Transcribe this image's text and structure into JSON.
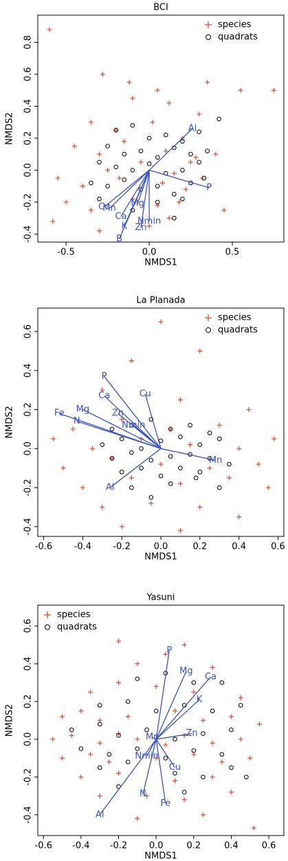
{
  "chart_data": [
    {
      "type": "scatter",
      "title": "BCI",
      "xlabel": "NMDS1",
      "ylabel": "NMDS2",
      "legend": "topright",
      "xlim": [
        -0.67,
        0.81
      ],
      "ylim": [
        -0.45,
        0.97
      ],
      "xticks": [
        -0.5,
        {
          "value": 0,
          "label": "0.0"
        },
        0.5
      ],
      "yticks": [
        -0.4,
        -0.2,
        {
          "value": 0,
          "label": "0.0"
        },
        0.2,
        0.4,
        0.6,
        0.8
      ],
      "series": [
        {
          "name": "species",
          "marker": "plus",
          "color": "#e8452c",
          "x": [
            -0.6,
            -0.28,
            -0.12,
            -0.1,
            0.05,
            0.12,
            0.35,
            0.55,
            0.75,
            -0.35,
            -0.2,
            0.02,
            0.2,
            0.3,
            -0.45,
            -0.3,
            -0.15,
            0.1,
            0.25,
            0.4,
            -0.25,
            -0.05,
            0.15,
            0.28,
            -0.55,
            -0.4,
            -0.18,
            0.08,
            0.22,
            0.32,
            -0.5,
            -0.35,
            -0.1,
            0.05,
            0.18,
            -0.58,
            -0.3,
            0.0,
            0.12,
            0.45
          ],
          "y": [
            0.88,
            0.6,
            0.55,
            0.45,
            0.5,
            0.42,
            0.55,
            0.5,
            0.5,
            0.3,
            0.25,
            0.3,
            0.2,
            0.35,
            0.15,
            0.1,
            0.18,
            0.12,
            0.05,
            0.1,
            0.0,
            0.05,
            -0.02,
            0.08,
            -0.05,
            -0.1,
            -0.05,
            -0.08,
            -0.12,
            -0.05,
            -0.2,
            -0.25,
            -0.18,
            -0.22,
            -0.2,
            -0.32,
            -0.38,
            -0.35,
            -0.3,
            -0.25
          ]
        },
        {
          "name": "quadrats",
          "marker": "circle",
          "color": "#000000",
          "x": [
            -0.2,
            -0.1,
            0.0,
            0.1,
            0.2,
            0.3,
            0.42,
            -0.25,
            -0.15,
            -0.05,
            0.05,
            0.15,
            0.25,
            0.35,
            -0.3,
            -0.2,
            -0.1,
            0.0,
            0.1,
            0.2,
            0.3,
            -0.35,
            -0.25,
            -0.15,
            -0.05,
            0.05,
            0.15,
            0.25,
            -0.1,
            0.05,
            0.2,
            0.15,
            -0.3,
            0.33
          ],
          "y": [
            0.25,
            0.28,
            0.2,
            0.22,
            0.18,
            0.24,
            0.32,
            0.15,
            0.1,
            0.12,
            0.08,
            0.14,
            0.1,
            0.12,
            0.05,
            0.02,
            0.0,
            0.04,
            -0.02,
            0.0,
            0.05,
            -0.08,
            -0.1,
            -0.06,
            -0.12,
            -0.1,
            -0.15,
            -0.08,
            -0.25,
            -0.2,
            -0.18,
            -0.3,
            -0.18,
            -0.05
          ]
        }
      ],
      "vectors": {
        "color": "#3a50c8",
        "labels": [
          "Al",
          "P",
          "Cu",
          "Mn",
          "Ca",
          "Mg",
          "K",
          "B",
          "Nmin",
          "Zn"
        ],
        "x": [
          0.26,
          0.36,
          -0.27,
          -0.24,
          -0.17,
          -0.07,
          -0.15,
          -0.18,
          0.0,
          -0.05
        ],
        "y": [
          0.26,
          -0.11,
          -0.23,
          -0.24,
          -0.29,
          -0.21,
          -0.35,
          -0.43,
          -0.32,
          -0.36
        ]
      }
    },
    {
      "type": "scatter",
      "title": "La Planada",
      "xlabel": "NMDS1",
      "ylabel": "NMDS2",
      "legend": "topright",
      "xlim": [
        -0.63,
        0.63
      ],
      "ylim": [
        -0.45,
        0.72
      ],
      "xticks": [
        -0.6,
        -0.4,
        -0.2,
        {
          "value": 0,
          "label": "0.0"
        },
        0.2,
        0.4,
        0.6
      ],
      "yticks": [
        -0.4,
        -0.2,
        {
          "value": 0,
          "label": "0.0"
        },
        0.2,
        0.4,
        0.6
      ],
      "series": [
        {
          "name": "species",
          "marker": "plus",
          "color": "#e8452c",
          "x": [
            0.0,
            -0.15,
            0.2,
            -0.3,
            0.1,
            0.45,
            -0.45,
            -0.2,
            0.05,
            0.3,
            -0.55,
            -0.35,
            -0.1,
            0.15,
            0.4,
            0.58,
            -0.5,
            -0.25,
            0.0,
            0.25,
            0.5,
            -0.4,
            -0.15,
            0.1,
            0.35,
            0.55,
            -0.3,
            -0.05,
            0.2,
            -0.2,
            0.1,
            0.4
          ],
          "y": [
            0.65,
            0.45,
            0.5,
            0.3,
            0.25,
            0.2,
            0.1,
            0.15,
            0.1,
            0.12,
            0.05,
            0.0,
            0.05,
            0.02,
            0.0,
            0.05,
            -0.1,
            -0.05,
            -0.08,
            -0.1,
            -0.08,
            -0.2,
            -0.15,
            -0.18,
            -0.15,
            -0.2,
            -0.3,
            -0.28,
            -0.3,
            -0.4,
            -0.42,
            -0.35
          ]
        },
        {
          "name": "quadrats",
          "marker": "circle",
          "color": "#000000",
          "x": [
            -0.25,
            -0.15,
            -0.05,
            0.05,
            0.15,
            0.25,
            -0.3,
            -0.2,
            -0.1,
            0.0,
            0.1,
            0.2,
            0.3,
            -0.25,
            -0.15,
            -0.05,
            0.05,
            0.15,
            0.25,
            0.35,
            -0.2,
            -0.1,
            0.0,
            0.1,
            0.2,
            -0.15,
            0.05,
            0.18,
            0.3,
            -0.05
          ],
          "y": [
            0.1,
            0.12,
            0.15,
            0.1,
            0.12,
            0.08,
            0.02,
            0.05,
            0.0,
            0.04,
            0.06,
            0.02,
            0.05,
            -0.05,
            -0.02,
            -0.06,
            -0.04,
            -0.03,
            -0.05,
            -0.08,
            -0.12,
            -0.1,
            -0.14,
            -0.1,
            -0.12,
            -0.2,
            -0.18,
            -0.15,
            -0.2,
            -0.25
          ]
        }
      ],
      "vectors": {
        "color": "#3a50c8",
        "labels": [
          "P",
          "Cu",
          "Ca",
          "Mg",
          "Fe",
          "N",
          "Zn",
          "Nmin",
          "Mn",
          "Al"
        ],
        "x": [
          -0.29,
          -0.08,
          -0.29,
          -0.4,
          -0.52,
          -0.43,
          -0.22,
          -0.14,
          0.28,
          -0.26
        ],
        "y": [
          0.37,
          0.28,
          0.27,
          0.2,
          0.18,
          0.14,
          0.18,
          0.12,
          -0.06,
          -0.2
        ]
      }
    },
    {
      "type": "scatter",
      "title": "Yasuni",
      "xlabel": "NMDS1",
      "ylabel": "NMDS2",
      "legend": "topleft",
      "xlim": [
        -0.63,
        0.68
      ],
      "ylim": [
        -0.51,
        0.71
      ],
      "xticks": [
        -0.6,
        -0.4,
        -0.2,
        {
          "value": 0,
          "label": "0.0"
        },
        0.2,
        0.4,
        0.6
      ],
      "yticks": [
        -0.4,
        -0.2,
        {
          "value": 0,
          "label": "0.0"
        },
        0.2,
        0.4,
        0.6
      ],
      "series": [
        {
          "name": "species",
          "marker": "plus",
          "color": "#e8452c",
          "x": [
            -0.2,
            0.15,
            -0.1,
            0.05,
            0.3,
            -0.35,
            -0.2,
            0.0,
            0.2,
            0.45,
            -0.5,
            -0.4,
            -0.3,
            -0.15,
            0.1,
            0.25,
            0.4,
            0.55,
            -0.55,
            -0.45,
            -0.3,
            -0.2,
            -0.1,
            0.05,
            0.15,
            0.3,
            0.45,
            -0.5,
            -0.35,
            -0.25,
            0.0,
            0.2,
            0.35,
            0.5,
            -0.4,
            -0.2,
            0.1,
            0.3,
            -0.3,
            -0.05,
            0.15,
            0.4,
            -0.1,
            0.25,
            0.52
          ],
          "y": [
            0.52,
            0.5,
            0.4,
            0.45,
            0.38,
            0.25,
            0.3,
            0.28,
            0.25,
            0.22,
            0.12,
            0.15,
            0.1,
            0.12,
            0.15,
            0.1,
            0.12,
            0.08,
            0.0,
            0.02,
            -0.02,
            0.03,
            0.0,
            -0.03,
            0.02,
            -0.02,
            0.0,
            -0.1,
            -0.08,
            -0.12,
            -0.1,
            -0.08,
            -0.12,
            -0.1,
            -0.2,
            -0.18,
            -0.22,
            -0.2,
            -0.3,
            -0.3,
            -0.32,
            -0.28,
            -0.42,
            -0.4,
            -0.47
          ]
        },
        {
          "name": "quadrats",
          "marker": "circle",
          "color": "#000000",
          "x": [
            -0.1,
            0.05,
            0.2,
            0.35,
            -0.3,
            -0.15,
            0.0,
            0.15,
            0.3,
            0.45,
            -0.45,
            -0.3,
            -0.2,
            -0.05,
            0.1,
            0.25,
            0.4,
            -0.4,
            -0.25,
            -0.1,
            0.05,
            0.2,
            0.35,
            0.48,
            -0.3,
            -0.15,
            0.1,
            0.25,
            0.4,
            -0.2,
            0.15
          ],
          "y": [
            0.32,
            0.35,
            0.3,
            0.3,
            0.18,
            0.2,
            0.15,
            0.18,
            0.15,
            0.18,
            0.05,
            0.08,
            0.02,
            0.05,
            0.0,
            0.03,
            0.05,
            -0.05,
            -0.08,
            -0.05,
            -0.1,
            -0.06,
            -0.08,
            -0.2,
            -0.15,
            -0.12,
            -0.18,
            -0.2,
            -0.15,
            -0.25,
            -0.28
          ]
        }
      ],
      "vectors": {
        "color": "#3a50c8",
        "labels": [
          "P",
          "Mg",
          "Ca",
          "K",
          "Zn",
          "Cu",
          "Fe",
          "N",
          "Nmin",
          "Al",
          "Mn"
        ],
        "x": [
          0.07,
          0.16,
          0.29,
          0.23,
          0.19,
          0.1,
          0.05,
          -0.07,
          -0.05,
          -0.3,
          -0.02
        ],
        "y": [
          0.47,
          0.36,
          0.33,
          0.21,
          0.03,
          -0.15,
          -0.34,
          -0.29,
          -0.09,
          -0.4,
          0.01
        ]
      }
    }
  ]
}
